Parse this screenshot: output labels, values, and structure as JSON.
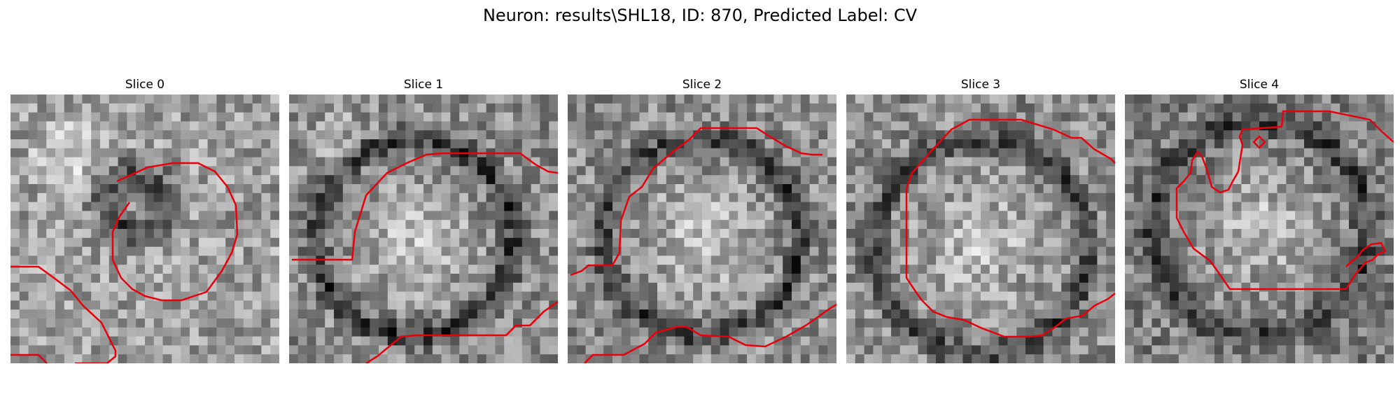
{
  "figure": {
    "suptitle": "Neuron: results\\SHL18, ID: 870, Predicted Label: CV"
  },
  "panels": [
    {
      "title": "Slice 0"
    },
    {
      "title": "Slice 1"
    },
    {
      "title": "Slice 2"
    },
    {
      "title": "Slice 3"
    },
    {
      "title": "Slice 4"
    }
  ],
  "colors": {
    "contour": "#e8000b",
    "background": "#ffffff"
  }
}
